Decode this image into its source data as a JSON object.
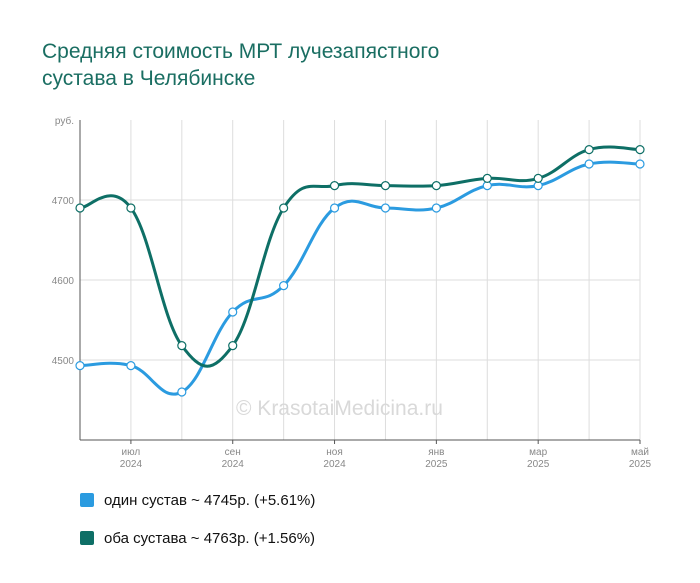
{
  "title_lines": [
    "Средняя стоимость МРТ лучезапястного",
    "сустава в Челябинске"
  ],
  "watermark": "© KrasotaiMedicina.ru",
  "chart_data": {
    "type": "line",
    "x": [
      "2024-06",
      "2024-07",
      "2024-08",
      "2024-09",
      "2024-10",
      "2024-11",
      "2024-12",
      "2025-01",
      "2025-02",
      "2025-03",
      "2025-04",
      "2025-05"
    ],
    "xtick_labels": [
      {
        "month": "июл",
        "year": "2024"
      },
      {
        "month": "сен",
        "year": "2024"
      },
      {
        "month": "ноя",
        "year": "2024"
      },
      {
        "month": "янв",
        "year": "2025"
      },
      {
        "month": "мар",
        "year": "2025"
      },
      {
        "month": "май",
        "year": "2025"
      }
    ],
    "ylabel": "руб.",
    "yticks": [
      4500,
      4600,
      4700
    ],
    "ylim": [
      4400,
      4800
    ],
    "grid": true,
    "legend_position": "bottom",
    "series": [
      {
        "name": "один сустав",
        "legend": "один сустав ~ 4745р. (+5.61%)",
        "color": "#2b9be0",
        "values": [
          4493,
          4493,
          4460,
          4560,
          4593,
          4690,
          4690,
          4690,
          4718,
          4718,
          4745,
          4745
        ]
      },
      {
        "name": "оба сустава",
        "legend": "оба сустава ~ 4763р. (+1.56%)",
        "color": "#0e6f66",
        "values": [
          4690,
          4690,
          4518,
          4518,
          4690,
          4718,
          4718,
          4718,
          4727,
          4727,
          4763,
          4763
        ]
      }
    ]
  }
}
